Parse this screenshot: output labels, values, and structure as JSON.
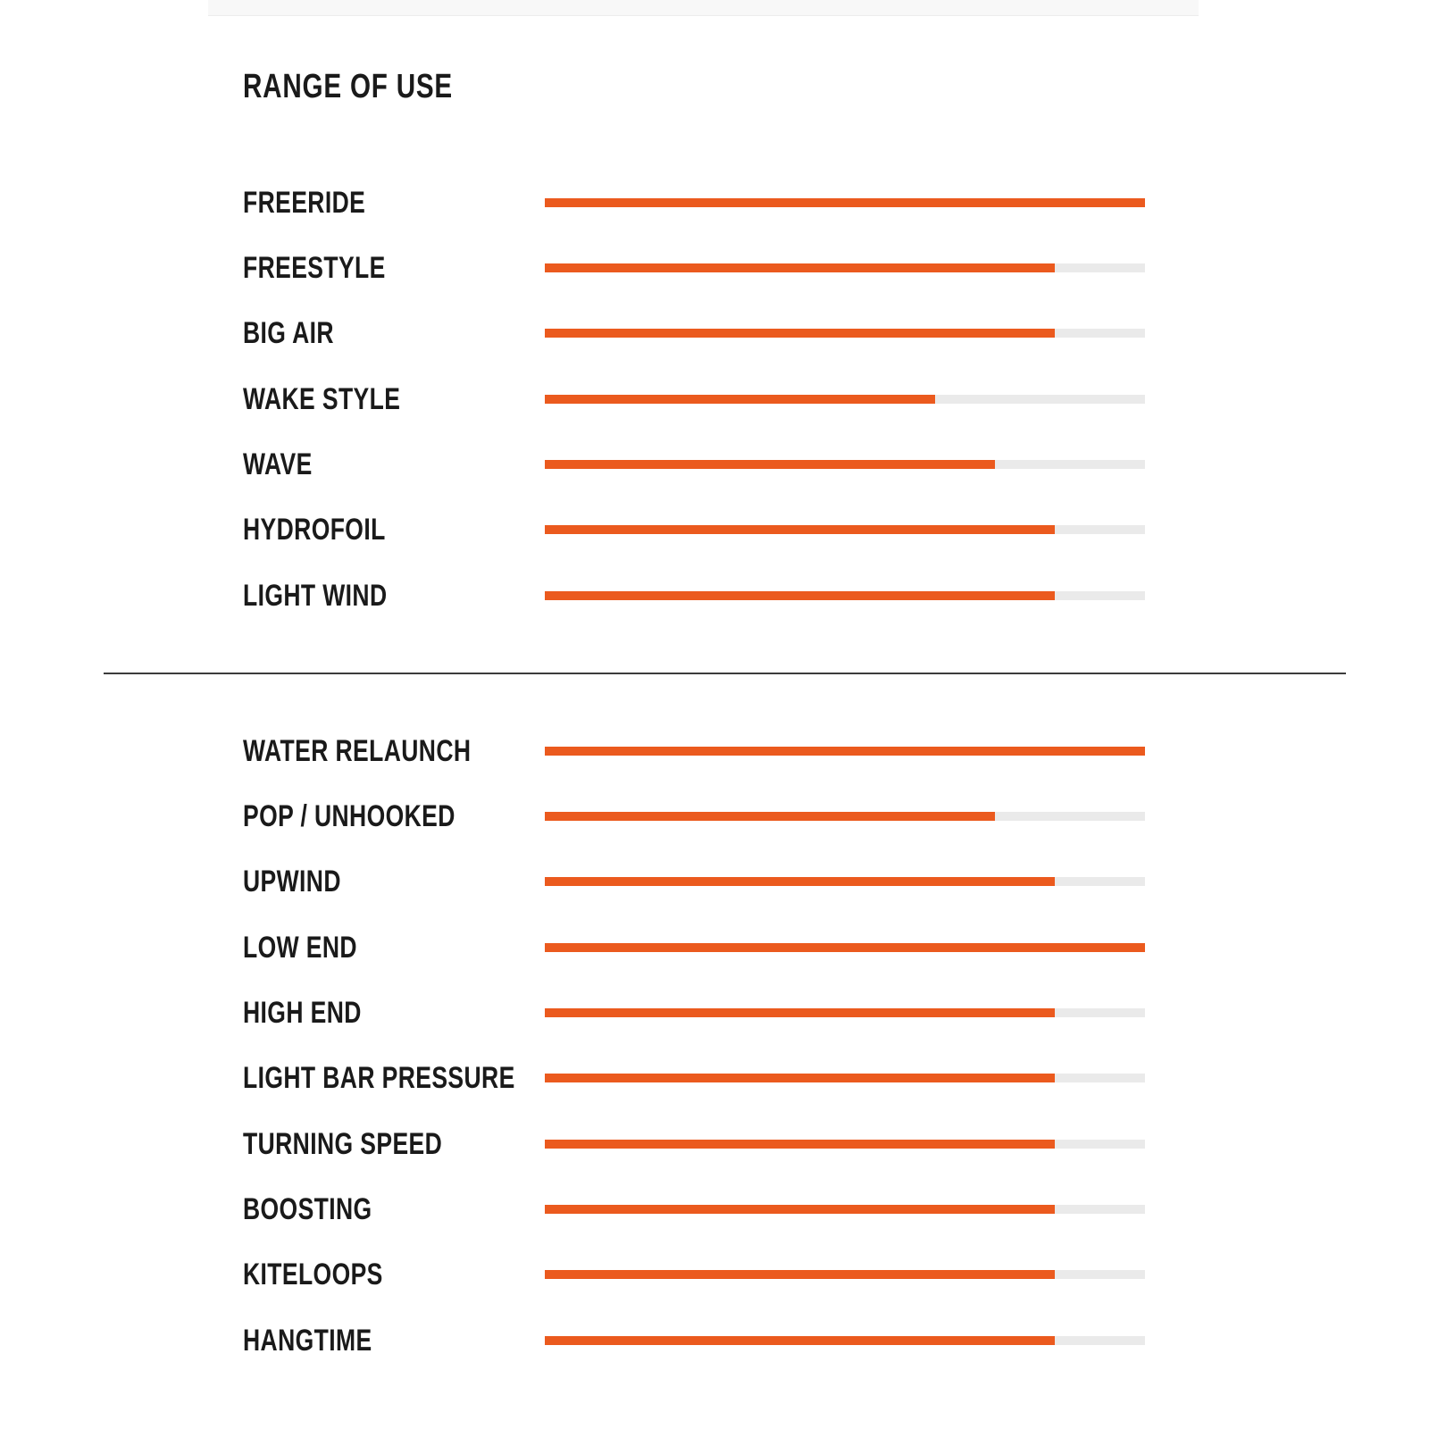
{
  "page_title": "RANGE OF USE",
  "colors": {
    "accent_orange": "#EB5A1E",
    "track_gray": "#EAEAEA",
    "text_black": "#1A1A1A",
    "divider_dark": "#3C3C3C",
    "band_gray": "#F8F8F8"
  },
  "chart_data": {
    "type": "bar",
    "orientation": "horizontal",
    "title": "RANGE OF USE",
    "value_unit": "percent",
    "value_range": [
      0,
      100
    ],
    "grid": false,
    "legend": false,
    "bar_fill_color": "#EB5A1E",
    "bar_track_color": "#EAEAEA",
    "sections": [
      {
        "name": "riding-styles",
        "categories": [
          "FREERIDE",
          "FREESTYLE",
          "BIG AIR",
          "WAKE STYLE",
          "WAVE",
          "HYDROFOIL",
          "LIGHT WIND"
        ],
        "values": [
          100,
          85,
          85,
          65,
          75,
          85,
          85
        ]
      },
      {
        "name": "performance",
        "categories": [
          "WATER RELAUNCH",
          "POP / UNHOOKED",
          "UPWIND",
          "LOW END",
          "HIGH END",
          "LIGHT BAR PRESSURE",
          "TURNING SPEED",
          "BOOSTING",
          "KITELOOPS",
          "HANGTIME"
        ],
        "values": [
          100,
          75,
          85,
          100,
          85,
          85,
          85,
          85,
          85,
          85
        ]
      }
    ]
  }
}
